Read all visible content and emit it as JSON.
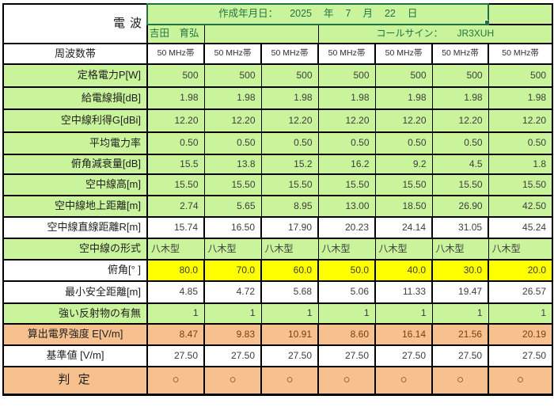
{
  "header": {
    "title": "電波",
    "date_label": "作成年月日：",
    "year": "2025",
    "year_unit": "年",
    "month": "7",
    "month_unit": "月",
    "day": "22",
    "day_unit": "日",
    "operator_name": "吉田　育弘",
    "callsign_label": "コールサイン：",
    "callsign": "JR3XUH"
  },
  "colors": {
    "cell_green": "#C9F49C",
    "cell_yellow": "#FFFF00",
    "cell_orange": "#F7C18F",
    "selection_green": "#217346",
    "header_text_green": "#217346",
    "result_brown": "#7B3A10",
    "grid_black": "#000000"
  },
  "table": {
    "rows": [
      {
        "label": "周波数帯",
        "align": "center",
        "vAlign": "center",
        "bg": "white",
        "vBg": "white",
        "small": true,
        "sep": true,
        "values": [
          "50 MHz帯",
          "50 MHz帯",
          "50 MHz帯",
          "50 MHz帯",
          "50 MHz帯",
          "50 MHz帯",
          "50 MHz帯"
        ]
      },
      {
        "label": "定格電力P[W]",
        "bg": "green",
        "vBg": "green",
        "values": [
          "500",
          "500",
          "500",
          "500",
          "500",
          "500",
          "500"
        ]
      },
      {
        "label": "給電線損[dB]",
        "bg": "green",
        "vBg": "green",
        "values": [
          "1.98",
          "1.98",
          "1.98",
          "1.98",
          "1.98",
          "1.98",
          "1.98"
        ]
      },
      {
        "label": "空中線利得G[dBi]",
        "bg": "green",
        "vBg": "green",
        "values": [
          "12.20",
          "12.20",
          "12.20",
          "12.20",
          "12.20",
          "12.20",
          "12.20"
        ]
      },
      {
        "label": "平均電力率",
        "bg": "green",
        "vBg": "green",
        "values": [
          "0.50",
          "0.50",
          "0.50",
          "0.50",
          "0.50",
          "0.50",
          "0.50"
        ]
      },
      {
        "label": "俯角減衰量[dB]",
        "bg": "green",
        "vBg": "green",
        "values": [
          "15.5",
          "13.8",
          "15.2",
          "16.2",
          "9.2",
          "4.5",
          "1.8"
        ]
      },
      {
        "label": "空中線高[m]",
        "bg": "green",
        "vBg": "green",
        "values": [
          "15.50",
          "15.50",
          "15.50",
          "15.50",
          "15.50",
          "15.50",
          "15.50"
        ]
      },
      {
        "label": "空中線地上距離[m]",
        "bg": "green",
        "vBg": "green",
        "values": [
          "2.74",
          "5.65",
          "8.95",
          "13.00",
          "18.50",
          "26.90",
          "42.50"
        ]
      },
      {
        "label": "空中線直線距離R[m]",
        "bg": "white",
        "vBg": "white",
        "sep": true,
        "values": [
          "15.74",
          "16.50",
          "17.90",
          "20.23",
          "24.14",
          "31.05",
          "45.24"
        ]
      },
      {
        "label": "空中線の形式",
        "bg": "green",
        "vBg": "green",
        "vAlign": "left",
        "values": [
          "八木型",
          "八木型",
          "八木型",
          "八木型",
          "八木型",
          "八木型",
          "八木型"
        ]
      },
      {
        "label": "俯角[°  ]",
        "bg": "white",
        "vBg": "yellow",
        "sep": true,
        "values": [
          "80.0",
          "70.0",
          "60.0",
          "50.0",
          "40.0",
          "30.0",
          "20.0"
        ]
      },
      {
        "label": "最小安全距離[m]",
        "bg": "white",
        "vBg": "white",
        "sep": true,
        "values": [
          "4.85",
          "4.72",
          "5.68",
          "5.06",
          "11.33",
          "19.47",
          "26.57"
        ]
      },
      {
        "label": "強い反射物の有無",
        "bg": "green",
        "vBg": "green",
        "values": [
          "1",
          "1",
          "1",
          "1",
          "1",
          "1",
          "1"
        ]
      },
      {
        "label": "算出電界強度 E[V/m]",
        "align": "center",
        "bg": "orange",
        "vBg": "orange",
        "vClass": "brown",
        "sep": true,
        "values": [
          "8.47",
          "9.83",
          "10.91",
          "8.60",
          "16.14",
          "21.56",
          "20.19"
        ]
      },
      {
        "label": "基準値 [V/m]",
        "align": "center",
        "bg": "white",
        "vBg": "white",
        "sep": true,
        "values": [
          "27.50",
          "27.50",
          "27.50",
          "27.50",
          "27.50",
          "27.50",
          "27.50"
        ]
      },
      {
        "label": "判 定",
        "align": "center",
        "vAlign": "center",
        "bg": "orange",
        "vBg": "orange",
        "vClass": "circle",
        "large": true,
        "sep": true,
        "values": [
          "○",
          "○",
          "○",
          "○",
          "○",
          "○",
          "○"
        ]
      }
    ]
  }
}
